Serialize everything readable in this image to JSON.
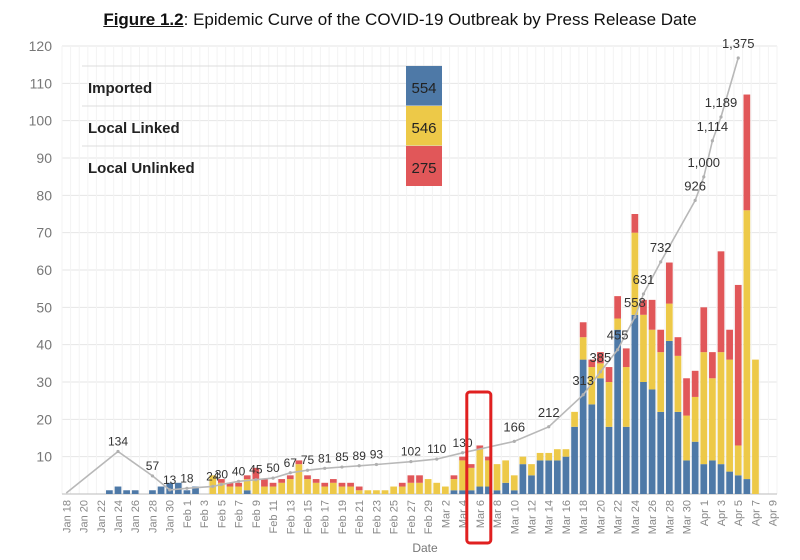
{
  "figure_label": "Figure 1.2",
  "figure_title": ": Epidemic Curve of the COVID-19 Outbreak by Press Release Date",
  "chart_data": {
    "type": "bar",
    "title": "Figure 1.2: Epidemic Curve of the COVID-19 Outbreak by Press Release Date",
    "xlabel": "Date",
    "ylabel": "",
    "ylim": [
      0,
      120
    ],
    "yticks": [
      10,
      20,
      30,
      40,
      50,
      60,
      70,
      80,
      90,
      100,
      110,
      120
    ],
    "stacked": true,
    "dates": [
      "Jan 18",
      "Jan 19",
      "Jan 20",
      "Jan 21",
      "Jan 22",
      "Jan 23",
      "Jan 24",
      "Jan 25",
      "Jan 26",
      "Jan 27",
      "Jan 28",
      "Jan 29",
      "Jan 30",
      "Jan 31",
      "Feb 1",
      "Feb 2",
      "Feb 3",
      "Feb 4",
      "Feb 5",
      "Feb 6",
      "Feb 7",
      "Feb 8",
      "Feb 9",
      "Feb 10",
      "Feb 11",
      "Feb 12",
      "Feb 13",
      "Feb 14",
      "Feb 15",
      "Feb 16",
      "Feb 17",
      "Feb 18",
      "Feb 19",
      "Feb 20",
      "Feb 21",
      "Feb 22",
      "Feb 23",
      "Feb 24",
      "Feb 25",
      "Feb 26",
      "Feb 27",
      "Feb 28",
      "Feb 29",
      "Mar 1",
      "Mar 2",
      "Mar 3",
      "Mar 4",
      "Mar 5",
      "Mar 6",
      "Mar 7",
      "Mar 8",
      "Mar 9",
      "Mar 10",
      "Mar 11",
      "Mar 12",
      "Mar 13",
      "Mar 14",
      "Mar 15",
      "Mar 16",
      "Mar 17",
      "Mar 18",
      "Mar 19",
      "Mar 20",
      "Mar 21",
      "Mar 22",
      "Mar 23",
      "Mar 24",
      "Mar 25",
      "Mar 26",
      "Mar 27",
      "Mar 28",
      "Mar 29",
      "Mar 30",
      "Mar 31",
      "Apr 1",
      "Apr 2",
      "Apr 3",
      "Apr 4",
      "Apr 5",
      "Apr 6",
      "Apr 7",
      "Apr 8",
      "Apr 9"
    ],
    "tick_labels": [
      "Jan 18",
      "Jan 20",
      "Jan 22",
      "Jan 24",
      "Jan 26",
      "Jan 28",
      "Jan 30",
      "Feb 1",
      "Feb 3",
      "Feb 5",
      "Feb 7",
      "Feb 9",
      "Feb 11",
      "Feb 13",
      "Feb 15",
      "Feb 17",
      "Feb 19",
      "Feb 21",
      "Feb 23",
      "Feb 25",
      "Feb 27",
      "Feb 29",
      "Mar 2",
      "Mar 4",
      "Mar 6",
      "Mar 8",
      "Mar 10",
      "Mar 12",
      "Mar 14",
      "Mar 16",
      "Mar 18",
      "Mar 20",
      "Mar 22",
      "Mar 24",
      "Mar 26",
      "Mar 28",
      "Mar 30",
      "Apr 1",
      "Apr 3",
      "Apr 5",
      "Apr 7",
      "Apr 9"
    ],
    "series": [
      {
        "name": "Imported",
        "color": "#4e79a7",
        "values": [
          0,
          0,
          0,
          0,
          0,
          1,
          2,
          1,
          1,
          0,
          1,
          2,
          3,
          3,
          1,
          2,
          0,
          0,
          0,
          0,
          0,
          1,
          0,
          0,
          0,
          0,
          0,
          0,
          0,
          0,
          0,
          0,
          0,
          0,
          0,
          0,
          0,
          0,
          0,
          0,
          0,
          0,
          0,
          0,
          0,
          1,
          1,
          1,
          2,
          2,
          1,
          3,
          1,
          8,
          5,
          9,
          9,
          9,
          10,
          18,
          36,
          24,
          31,
          18,
          44,
          18,
          48,
          30,
          28,
          22,
          41,
          22,
          9,
          14,
          8,
          9,
          8,
          6,
          5,
          4,
          0,
          0,
          0
        ]
      },
      {
        "name": "Local Linked",
        "color": "#edc948",
        "values": [
          0,
          0,
          0,
          0,
          0,
          0,
          0,
          0,
          0,
          0,
          0,
          0,
          0,
          0,
          0,
          0,
          0,
          5,
          3,
          2,
          2,
          3,
          4,
          2,
          2,
          3,
          4,
          8,
          4,
          3,
          2,
          3,
          2,
          2,
          1,
          1,
          1,
          1,
          2,
          2,
          3,
          3,
          4,
          3,
          2,
          3,
          8,
          6,
          10,
          7,
          7,
          6,
          4,
          2,
          3,
          2,
          2,
          3,
          2,
          4,
          6,
          10,
          4,
          12,
          3,
          16,
          22,
          18,
          16,
          16,
          10,
          15,
          12,
          12,
          30,
          22,
          30,
          30,
          8,
          72,
          36,
          0,
          0
        ]
      },
      {
        "name": "Local Unlinked",
        "color": "#e15759",
        "values": [
          0,
          0,
          0,
          0,
          0,
          0,
          0,
          0,
          0,
          0,
          0,
          0,
          0,
          0,
          0,
          0,
          0,
          0,
          1,
          1,
          1,
          1,
          3,
          2,
          1,
          1,
          1,
          1,
          1,
          1,
          1,
          1,
          1,
          1,
          1,
          0,
          0,
          0,
          0,
          1,
          2,
          2,
          0,
          0,
          0,
          1,
          1,
          1,
          1,
          1,
          0,
          0,
          0,
          0,
          0,
          0,
          0,
          0,
          0,
          0,
          4,
          2,
          3,
          4,
          6,
          5,
          5,
          4,
          8,
          6,
          11,
          5,
          10,
          7,
          12,
          7,
          27,
          8,
          43,
          31,
          0,
          0,
          0
        ]
      }
    ],
    "cumulative_labels": [
      {
        "date": "Jan 24",
        "label": "134"
      },
      {
        "date": "Jan 28",
        "label": "57"
      },
      {
        "date": "Jan 30",
        "label": "13"
      },
      {
        "date": "Feb 1",
        "label": "18"
      },
      {
        "date": "Feb 4",
        "label": "24"
      },
      {
        "date": "Feb 5",
        "label": "30"
      },
      {
        "date": "Feb 7",
        "label": "40"
      },
      {
        "date": "Feb 9",
        "label": "45"
      },
      {
        "date": "Feb 11",
        "label": "50"
      },
      {
        "date": "Feb 13",
        "label": "67"
      },
      {
        "date": "Feb 15",
        "label": "75"
      },
      {
        "date": "Feb 17",
        "label": "81"
      },
      {
        "date": "Feb 19",
        "label": "85"
      },
      {
        "date": "Feb 21",
        "label": "89"
      },
      {
        "date": "Feb 23",
        "label": "93"
      },
      {
        "date": "Feb 27",
        "label": "102"
      },
      {
        "date": "Mar 1",
        "label": "110"
      },
      {
        "date": "Mar 4",
        "label": "130"
      },
      {
        "date": "Mar 10",
        "label": "166"
      },
      {
        "date": "Mar 14",
        "label": "212"
      },
      {
        "date": "Mar 18",
        "label": "313"
      },
      {
        "date": "Mar 20",
        "label": "385"
      },
      {
        "date": "Mar 22",
        "label": "455"
      },
      {
        "date": "Mar 24",
        "label": "558"
      },
      {
        "date": "Mar 25",
        "label": "631"
      },
      {
        "date": "Mar 27",
        "label": "732"
      },
      {
        "date": "Mar 31",
        "label": "926"
      },
      {
        "date": "Apr 1",
        "label": "1,000"
      },
      {
        "date": "Apr 2",
        "label": "1,114"
      },
      {
        "date": "Apr 3",
        "label": "1,189"
      },
      {
        "date": "Apr 5",
        "label": "1,375"
      }
    ],
    "highlight": {
      "date": "Mar 6",
      "color": "#e02020"
    },
    "legend_placement": "top-left",
    "legend": [
      {
        "name": "Imported",
        "total": "554",
        "color": "#4e79a7"
      },
      {
        "name": "Local Linked",
        "total": "546",
        "color": "#edc948"
      },
      {
        "name": "Local Unlinked",
        "total": "275",
        "color": "#e15759"
      }
    ],
    "grid": true
  }
}
